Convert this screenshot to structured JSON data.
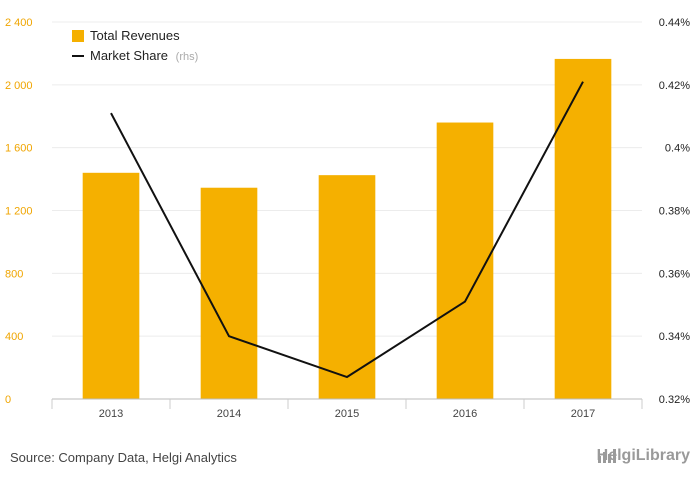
{
  "chart_data": {
    "type": "bar",
    "categories": [
      "2013",
      "2014",
      "2015",
      "2016",
      "2017"
    ],
    "series": [
      {
        "name": "Total Revenues",
        "kind": "bar",
        "axis": "left",
        "color": "#f5b000",
        "values": [
          1440,
          1345,
          1425,
          1760,
          2165
        ]
      },
      {
        "name": "Market Share",
        "name_suffix": "(rhs)",
        "kind": "line",
        "axis": "right",
        "color": "#111111",
        "values": [
          0.411,
          0.34,
          0.327,
          0.351,
          0.421
        ]
      }
    ],
    "y_left": {
      "range": [
        0,
        2400
      ],
      "ticks": [
        "0",
        "400",
        "800",
        "1 200",
        "1 600",
        "2 000",
        "2 400"
      ],
      "tick_values": [
        0,
        400,
        800,
        1200,
        1600,
        2000,
        2400
      ]
    },
    "y_right": {
      "range": [
        0.32,
        0.44
      ],
      "ticks": [
        "0.32%",
        "0.34%",
        "0.36%",
        "0.38%",
        "0.4%",
        "0.42%",
        "0.44%"
      ],
      "tick_values": [
        0.32,
        0.34,
        0.36,
        0.38,
        0.4,
        0.42,
        0.44
      ]
    },
    "grid": true,
    "legend_position": "top-left"
  },
  "footer": {
    "source": "Source: Company Data, Helgi Analytics",
    "brand": "HelgiLibrary"
  },
  "icons": {
    "brand_icon": "library-chart-icon"
  }
}
